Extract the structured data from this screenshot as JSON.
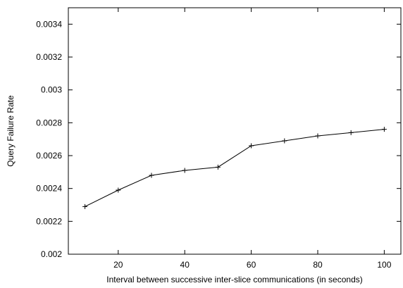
{
  "chart_data": {
    "type": "line",
    "title": "",
    "xlabel": "Interval between successive inter-slice communications (in seconds)",
    "ylabel": "Query Failure Rate",
    "xlim": [
      5,
      105
    ],
    "ylim": [
      0.002,
      0.0035
    ],
    "x_ticks": [
      20,
      40,
      60,
      80,
      100
    ],
    "x_tick_labels": [
      "20",
      "40",
      "60",
      "80",
      "100"
    ],
    "y_ticks": [
      0.002,
      0.0022,
      0.0024,
      0.0026,
      0.0028,
      0.003,
      0.0032,
      0.0034
    ],
    "y_tick_labels": [
      "0.002",
      "0.0022",
      "0.0024",
      "0.0026",
      "0.0028",
      "0.003",
      "0.0032",
      "0.0034"
    ],
    "grid": false,
    "legend": "none",
    "marker": "plus",
    "line_color": "#000000",
    "series": [
      {
        "x": [
          10,
          20,
          30,
          40,
          50,
          60,
          70,
          80,
          90,
          100
        ],
        "values": [
          0.00229,
          0.00239,
          0.00248,
          0.00251,
          0.00253,
          0.00266,
          0.00269,
          0.00272,
          0.00274,
          0.00276
        ]
      }
    ]
  }
}
